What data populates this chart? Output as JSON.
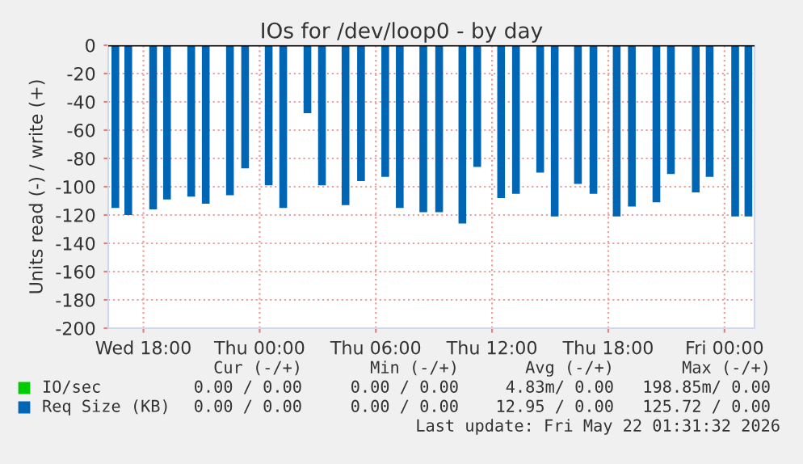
{
  "chart_data": {
    "type": "bar",
    "title": "IOs for /dev/loop0 - by day",
    "ylabel": "Units read (-) / write (+)",
    "xlim": [
      "2026-05-20T16:11",
      "2026-05-22T01:33"
    ],
    "xticks": [
      {
        "value": "2026-05-20T18:00",
        "label": "Wed 18:00"
      },
      {
        "value": "2026-05-21T00:00",
        "label": "Thu 00:00"
      },
      {
        "value": "2026-05-21T06:00",
        "label": "Thu 06:00"
      },
      {
        "value": "2026-05-21T12:00",
        "label": "Thu 12:00"
      },
      {
        "value": "2026-05-21T18:00",
        "label": "Thu 18:00"
      },
      {
        "value": "2026-05-22T00:00",
        "label": "Fri 00:00"
      }
    ],
    "ylim": [
      -200,
      0
    ],
    "yticks": [
      0,
      -20,
      -40,
      -60,
      -80,
      -100,
      -120,
      -140,
      -160,
      -180,
      -200
    ],
    "grid": true,
    "legend": "bottom",
    "ref_lines": [
      {
        "axis": "y",
        "value": 0,
        "color": "#000000"
      }
    ],
    "series": [
      {
        "name": "IO/sec",
        "color": "#00cc00"
      },
      {
        "name": "Req Size (KB)",
        "color": "#0066b3",
        "x": [
          "2026-05-20T16:33",
          "2026-05-20T17:13",
          "2026-05-20T18:30",
          "2026-05-20T19:13",
          "2026-05-20T20:28",
          "2026-05-20T21:13",
          "2026-05-20T22:28",
          "2026-05-20T23:15",
          "2026-05-21T00:28",
          "2026-05-21T01:13",
          "2026-05-21T02:28",
          "2026-05-21T03:13",
          "2026-05-21T04:26",
          "2026-05-21T05:14",
          "2026-05-21T06:29",
          "2026-05-21T07:14",
          "2026-05-21T08:27",
          "2026-05-21T09:16",
          "2026-05-21T10:28",
          "2026-05-21T11:14",
          "2026-05-21T12:28",
          "2026-05-21T13:14",
          "2026-05-21T14:29",
          "2026-05-21T15:14",
          "2026-05-21T16:26",
          "2026-05-21T17:14",
          "2026-05-21T18:26",
          "2026-05-21T19:13",
          "2026-05-21T20:29",
          "2026-05-21T21:14",
          "2026-05-21T22:31",
          "2026-05-21T23:14",
          "2026-05-22T00:33",
          "2026-05-22T01:14"
        ],
        "values": [
          -115,
          -120,
          -116,
          -109,
          -107,
          -112,
          -106,
          -87,
          -99,
          -115,
          -48,
          -99,
          -113,
          -96,
          -93,
          -115,
          -118,
          -118,
          -126,
          -86,
          -108,
          -105,
          -90,
          -121,
          -98,
          -105,
          -121,
          -114,
          -111,
          -91,
          -104,
          -93,
          -121,
          -121
        ]
      }
    ],
    "annotations": [
      "Cur (-/+)",
      "Min (-/+)",
      "Avg (-/+)",
      "Max (-/+)",
      "0.00 / 0.00",
      "0.00 / 0.00",
      "4.83m/ 0.00",
      "198.85m/ 0.00",
      "0.00 / 0.00",
      "0.00 / 0.00",
      "12.95 / 0.00",
      "125.72 / 0.00",
      "Last update: Fri May 22 01:31:32 2026"
    ]
  }
}
